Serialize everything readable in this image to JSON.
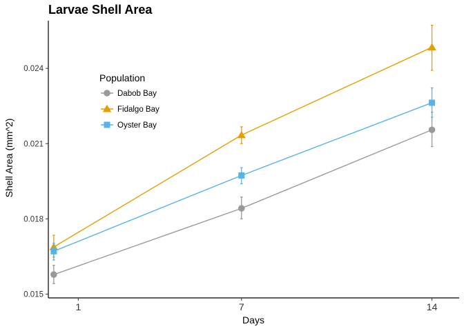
{
  "chart_data": {
    "type": "line",
    "title": "Larvae Shell Area",
    "xlabel": "Days",
    "ylabel": "Shell Area (mm^2)",
    "x": [
      1,
      7,
      14
    ],
    "x_ticks": [
      1,
      7,
      14
    ],
    "x_tick_labels": [
      "1",
      "7",
      "14"
    ],
    "y_ticks": [
      0.015,
      0.018,
      0.021,
      0.024
    ],
    "y_tick_labels": [
      "0.015",
      "0.018",
      "0.021",
      "0.024"
    ],
    "ylim": [
      0.01485,
      0.0259
    ],
    "xlim": [
      -0.1,
      15
    ],
    "grid": false,
    "legend_title": "Population",
    "legend_position": "inside-top-left",
    "series": [
      {
        "name": "Dabob Bay",
        "color": "#999999",
        "marker": "circle",
        "x": [
          0.1,
          7,
          14
        ],
        "values": [
          0.01578,
          0.01842,
          0.02155
        ],
        "error_low": [
          0.01542,
          0.018,
          0.02088
        ],
        "error_high": [
          0.01615,
          0.01887,
          0.02225
        ]
      },
      {
        "name": "Fidalgo Bay",
        "color": "#E69F00",
        "marker": "triangle",
        "x": [
          0.1,
          7,
          14
        ],
        "values": [
          0.01688,
          0.02134,
          0.02484
        ],
        "error_low": [
          0.01648,
          0.021,
          0.02392
        ],
        "error_high": [
          0.01735,
          0.02167,
          0.02572
        ]
      },
      {
        "name": "Oyster Bay",
        "color": "#56B4E9",
        "marker": "square",
        "x": [
          0.1,
          7,
          14
        ],
        "values": [
          0.01671,
          0.01973,
          0.02263
        ],
        "error_low": [
          0.01636,
          0.0194,
          0.02205
        ],
        "error_high": [
          0.01703,
          0.02004,
          0.02322
        ]
      }
    ]
  }
}
